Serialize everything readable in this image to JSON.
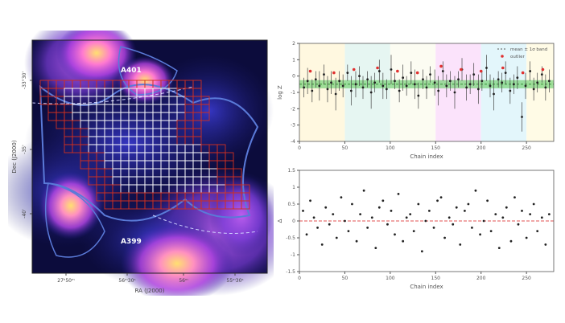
{
  "map": {
    "ylabel": "Dec (J2000)",
    "xlabel": "RA (J2000)",
    "yticks": [
      "-33°30'",
      "-35'",
      "-40'"
    ],
    "xticks": [
      "27ʰ50ᵐ",
      "56ᵐ30ˢ",
      "56ᵐ",
      "55ᵐ30ˢ"
    ],
    "labels": {
      "top_cluster": "A401",
      "bottom_cluster": "A399"
    },
    "colors": {
      "background": "#0c0c3c",
      "contour": "#5a7ad8",
      "grid_inner": "#ffffff",
      "grid_outer": "#d03020",
      "hot": "#ffe070"
    }
  },
  "chart_data": [
    {
      "type": "scatter",
      "panel": "top",
      "xlabel": "Chain index",
      "ylabel": "log Z",
      "xlim": [
        0,
        280
      ],
      "ylim": [
        -4,
        2
      ],
      "xticks": [
        0,
        50,
        100,
        150,
        200,
        250
      ],
      "yticks": [
        -4,
        -3,
        -2,
        -1,
        0,
        1,
        2
      ],
      "band": {
        "center": -0.5,
        "lower": -0.75,
        "upper": -0.25,
        "color": "#7fd47f"
      },
      "legend": {
        "position": "top-right",
        "entries": [
          "mean ± 1σ band",
          "outlier"
        ]
      },
      "bg_bands": [
        {
          "from": 0,
          "to": 50,
          "color": "#fff8e0"
        },
        {
          "from": 50,
          "to": 100,
          "color": "#e6f6f2"
        },
        {
          "from": 100,
          "to": 150,
          "color": "#fcfcf2"
        },
        {
          "from": 150,
          "to": 200,
          "color": "#fbe3fb"
        },
        {
          "from": 200,
          "to": 250,
          "color": "#e3f6fb"
        },
        {
          "from": 250,
          "to": 280,
          "color": "#fffbe6"
        }
      ],
      "x": [
        5,
        9,
        14,
        18,
        22,
        27,
        31,
        35,
        40,
        44,
        48,
        53,
        57,
        62,
        66,
        70,
        75,
        79,
        83,
        88,
        92,
        96,
        101,
        105,
        110,
        114,
        118,
        123,
        127,
        131,
        136,
        140,
        144,
        149,
        153,
        158,
        162,
        166,
        171,
        175,
        179,
        184,
        188,
        192,
        197,
        201,
        206,
        210,
        214,
        219,
        223,
        227,
        232,
        236,
        240,
        245,
        249,
        254,
        258,
        262,
        267,
        271,
        275
      ],
      "y": [
        -0.7,
        -0.3,
        -0.9,
        -0.2,
        -0.6,
        0.1,
        -0.8,
        -0.4,
        -1.1,
        -0.3,
        -0.6,
        0.2,
        -0.9,
        -0.5,
        0.0,
        -0.7,
        -0.2,
        -1.0,
        -0.4,
        0.3,
        -0.6,
        -0.8,
        0.4,
        -0.3,
        -0.9,
        -0.1,
        -0.6,
        0.2,
        -0.5,
        -1.2,
        -0.2,
        -0.7,
        0.1,
        -0.4,
        -0.9,
        0.3,
        -0.6,
        -0.3,
        -1.0,
        -0.2,
        0.4,
        -0.7,
        -0.5,
        0.1,
        -0.8,
        -0.3,
        0.5,
        -0.6,
        -1.1,
        -0.2,
        -0.4,
        0.2,
        -0.9,
        -0.5,
        -0.1,
        -2.5,
        -0.6,
        0.3,
        -0.8,
        -0.4,
        0.1,
        -0.7,
        -0.3
      ],
      "err": [
        0.6,
        0.8,
        0.7,
        0.5,
        0.9,
        0.6,
        0.8,
        0.7,
        1.0,
        0.6,
        0.7,
        0.5,
        0.9,
        0.8,
        0.6,
        0.7,
        0.5,
        1.0,
        0.6,
        0.7,
        0.8,
        0.6,
        0.9,
        0.5,
        0.7,
        0.8,
        0.6,
        0.7,
        0.9,
        0.8,
        0.6,
        0.7,
        0.5,
        0.8,
        0.9,
        0.6,
        0.7,
        0.6,
        1.0,
        0.5,
        0.7,
        0.8,
        0.6,
        0.7,
        0.9,
        0.6,
        0.8,
        0.7,
        1.0,
        0.5,
        0.6,
        0.7,
        0.8,
        0.6,
        0.7,
        0.9,
        0.8,
        0.6,
        0.7,
        0.6,
        0.5,
        0.8,
        0.7
      ],
      "outliers_x": [
        12,
        38,
        60,
        86,
        108,
        130,
        156,
        178,
        200,
        224,
        246,
        268
      ],
      "outliers_y": [
        0.3,
        0.2,
        0.4,
        0.5,
        0.3,
        0.2,
        0.6,
        0.4,
        0.3,
        0.5,
        0.2,
        0.4
      ]
    },
    {
      "type": "scatter",
      "panel": "bottom",
      "xlabel": "Chain index",
      "ylabel": "Δ",
      "xlim": [
        0,
        280
      ],
      "ylim": [
        -1.5,
        1.5
      ],
      "xticks": [
        0,
        50,
        100,
        150,
        200,
        250
      ],
      "yticks": [
        -1.5,
        -1.0,
        -0.5,
        0.0,
        0.5,
        1.0,
        1.5
      ],
      "zero_line_color": "#e05050",
      "x": [
        4,
        8,
        12,
        16,
        20,
        25,
        29,
        33,
        37,
        41,
        46,
        50,
        54,
        58,
        63,
        67,
        71,
        75,
        80,
        84,
        88,
        92,
        97,
        101,
        105,
        109,
        114,
        118,
        122,
        126,
        131,
        135,
        139,
        143,
        148,
        152,
        156,
        160,
        165,
        169,
        173,
        177,
        182,
        186,
        190,
        194,
        199,
        203,
        207,
        211,
        216,
        220,
        224,
        228,
        233,
        237,
        241,
        245,
        250,
        254,
        258,
        262,
        267,
        271,
        275
      ],
      "y": [
        0.3,
        -0.4,
        0.6,
        0.1,
        -0.2,
        -0.7,
        0.4,
        -0.1,
        0.2,
        -0.5,
        0.7,
        0.0,
        -0.3,
        0.5,
        -0.6,
        0.2,
        0.9,
        -0.2,
        0.1,
        -0.8,
        0.4,
        0.6,
        -0.1,
        0.3,
        -0.4,
        0.8,
        -0.6,
        0.1,
        0.2,
        -0.3,
        0.5,
        -0.9,
        0.0,
        0.3,
        -0.2,
        0.6,
        0.7,
        -0.5,
        0.1,
        -0.1,
        0.4,
        -0.7,
        0.3,
        0.5,
        -0.2,
        0.9,
        -0.4,
        0.0,
        0.6,
        -0.3,
        0.2,
        -0.8,
        0.1,
        0.4,
        -0.6,
        0.7,
        -0.1,
        0.3,
        -0.5,
        0.2,
        0.5,
        -0.3,
        0.1,
        -0.7,
        0.2
      ]
    }
  ]
}
